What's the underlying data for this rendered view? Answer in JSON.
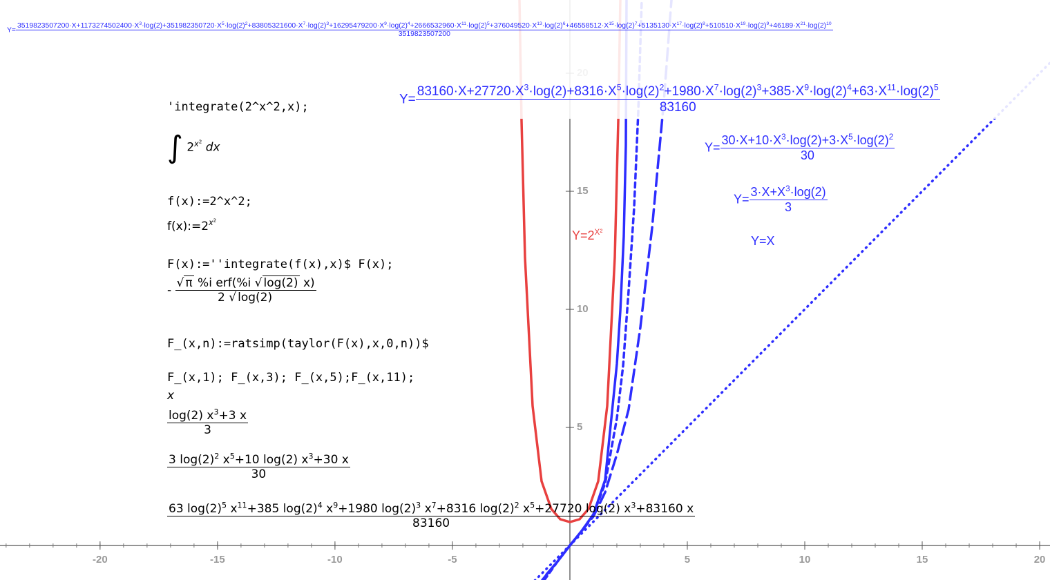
{
  "header_formula": {
    "lhs": "Y=",
    "numerator": [
      "3519823507200·X+1173274502400·X",
      "3",
      "·log(2)+351982350720·X",
      "5",
      "·log(2)",
      "2",
      "+83805321600·X",
      "7",
      "·log(2)",
      "3",
      "+16295479200·X",
      "9",
      "·log(2)",
      "4",
      "+2666532960·X",
      "11",
      "·log(2)",
      "5",
      "+376049520·X",
      "13",
      "·log(2)",
      "6",
      "+46558512·X",
      "15",
      "·log(2)",
      "7",
      "+5135130·X",
      "17",
      "·log(2)",
      "8",
      "+510510·X",
      "19",
      "·log(2)",
      "9",
      "+46189·X",
      "21",
      "·log(2)",
      "10"
    ],
    "denominator": "3519823507200"
  },
  "plot": {
    "xlim": [
      -24.26,
      20.44
    ],
    "ylim": [
      -1.46,
      23.1
    ],
    "xticks": [
      -20,
      -15,
      -10,
      -5,
      5,
      10,
      15,
      20
    ],
    "yticks": [
      5,
      10,
      15,
      20
    ],
    "label_11": {
      "lhs": "Y=",
      "numerator": [
        "83160·X+27720·X",
        "3",
        "·log(2)+8316·X",
        "5",
        "·log(2)",
        "2",
        "+1980·X",
        "7",
        "·log(2)",
        "3",
        "+385·X",
        "9",
        "·log(2)",
        "4",
        "+63·X",
        "11",
        "·log(2)",
        "5"
      ],
      "denominator": "83160"
    },
    "label_5": {
      "lhs": "Y=",
      "numerator": [
        "30·X+10·X",
        "3",
        "·log(2)+3·X",
        "5",
        "·log(2)",
        "2"
      ],
      "denominator": "30"
    },
    "label_3": {
      "lhs": "Y=",
      "numerator": [
        "3·X+X",
        "3",
        "·log(2)"
      ],
      "denominator": "3"
    },
    "label_1": "Y=X",
    "label_red": [
      "Y=2",
      "X²"
    ]
  },
  "session": {
    "in1": "'integrate(2^x^2,x);",
    "out1": {
      "integral": "∫",
      "base": "2",
      "exp": "x",
      "exp2": "2",
      "d": "dx"
    },
    "in2": "f(x):=2^x^2;",
    "out2": {
      "lhs": "f(x):=2",
      "exp": "x",
      "exp2": "2"
    },
    "in3": "F(x):=''integrate(f(x),x)$ F(x);",
    "out3": {
      "sign": "-",
      "sqrt1": "π",
      "mid": "%i erf(%i",
      "sqrt2": "log(2)",
      "end": "x)",
      "den_coef": "2",
      "den_sqrt": "log(2)"
    },
    "in4": "F_(x,n):=ratsimp(taylor(F(x),x,0,n))$",
    "in5": "F_(x,1); F_(x,3); F_(x,5);F_(x,11);",
    "out4": "x",
    "out5": {
      "numerator": [
        "log(2) x",
        "3",
        "+3 x"
      ],
      "denominator": "3"
    },
    "out6": {
      "numerator": [
        "3 log(2)",
        "2",
        " x",
        "5",
        "+10 log(2) x",
        "3",
        "+30 x"
      ],
      "denominator": "30"
    },
    "out7": {
      "numerator": [
        "63 log(2)",
        "5",
        " x",
        "11",
        "+385 log(2)",
        "4",
        " x",
        "9",
        "+1980 log(2)",
        "3",
        " x",
        "7",
        "+8316 log(2)",
        "2",
        " x",
        "5",
        "+27720 log(2) x",
        "3",
        "+83160 x"
      ],
      "denominator": "83160"
    }
  }
}
